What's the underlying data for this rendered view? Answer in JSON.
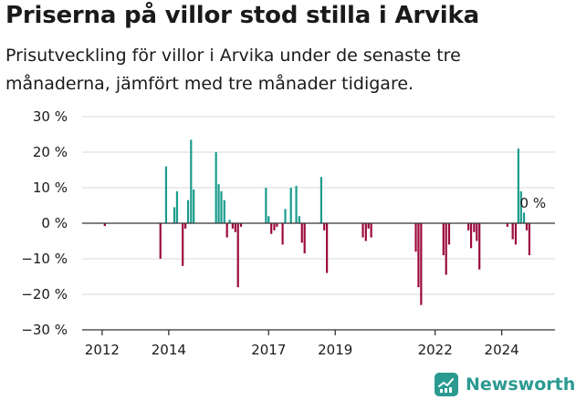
{
  "title": "Priserna på villor stod stilla i Arvika",
  "subtitle": "Prisutveckling för villor i Arvika under de senaste tre månaderna, jämfört med tre månader tidigare.",
  "brand": {
    "name": "Newsworthy",
    "color": "#2b9a91"
  },
  "chart_data": {
    "type": "bar",
    "ylim": [
      -30,
      30
    ],
    "xlim": [
      2011.4,
      2025.6
    ],
    "y_ticks": [
      30,
      20,
      10,
      0,
      -10,
      -20,
      -30
    ],
    "y_tick_labels": [
      "30 %",
      "20 %",
      "10 %",
      "0 %",
      "−10 %",
      "−20 %",
      "−30 %"
    ],
    "x_ticks": [
      2012,
      2014,
      2017,
      2019,
      2022,
      2024
    ],
    "x_tick_labels": [
      "2012",
      "2014",
      "2017",
      "2019",
      "2022",
      "2024"
    ],
    "grid": true,
    "colors": {
      "positive": "#1a9c8e",
      "negative": "#9c0a3e",
      "grid": "#d8d8d8",
      "axis": "#333333"
    },
    "annotation": {
      "text": "0 %",
      "x": 2024.6,
      "y": 0
    },
    "series": [
      {
        "points": [
          [
            2012.08,
            -0.8
          ],
          [
            2013.75,
            -10
          ],
          [
            2013.92,
            16
          ],
          [
            2014.17,
            4.5
          ],
          [
            2014.25,
            9
          ],
          [
            2014.42,
            -12
          ],
          [
            2014.5,
            -1.5
          ],
          [
            2014.58,
            6.5
          ],
          [
            2014.67,
            23.5
          ],
          [
            2014.75,
            9.5
          ],
          [
            2015.42,
            20
          ],
          [
            2015.5,
            11
          ],
          [
            2015.58,
            9
          ],
          [
            2015.67,
            6.5
          ],
          [
            2015.75,
            -4
          ],
          [
            2015.83,
            1
          ],
          [
            2015.92,
            -1.5
          ],
          [
            2016.0,
            -2.5
          ],
          [
            2016.08,
            -18
          ],
          [
            2016.17,
            -1
          ],
          [
            2016.92,
            10
          ],
          [
            2017.0,
            2
          ],
          [
            2017.08,
            -3
          ],
          [
            2017.17,
            -2
          ],
          [
            2017.25,
            -1
          ],
          [
            2017.42,
            -6
          ],
          [
            2017.5,
            4
          ],
          [
            2017.67,
            10
          ],
          [
            2017.83,
            10.5
          ],
          [
            2017.92,
            2
          ],
          [
            2018.0,
            -5.5
          ],
          [
            2018.08,
            -8.5
          ],
          [
            2018.58,
            13
          ],
          [
            2018.67,
            -2
          ],
          [
            2018.75,
            -14
          ],
          [
            2019.83,
            -4
          ],
          [
            2019.92,
            -5
          ],
          [
            2020.0,
            -1.5
          ],
          [
            2020.08,
            -4
          ],
          [
            2021.42,
            -8
          ],
          [
            2021.5,
            -18
          ],
          [
            2021.58,
            -23
          ],
          [
            2022.25,
            -9
          ],
          [
            2022.33,
            -14.5
          ],
          [
            2022.42,
            -6
          ],
          [
            2023.0,
            -2
          ],
          [
            2023.08,
            -7
          ],
          [
            2023.17,
            -2.5
          ],
          [
            2023.25,
            -5
          ],
          [
            2023.33,
            -13
          ],
          [
            2024.17,
            -1
          ],
          [
            2024.33,
            -4.5
          ],
          [
            2024.42,
            -6
          ],
          [
            2024.5,
            21
          ],
          [
            2024.58,
            9
          ],
          [
            2024.67,
            3
          ],
          [
            2024.75,
            -2
          ],
          [
            2024.83,
            -9
          ]
        ]
      }
    ]
  }
}
